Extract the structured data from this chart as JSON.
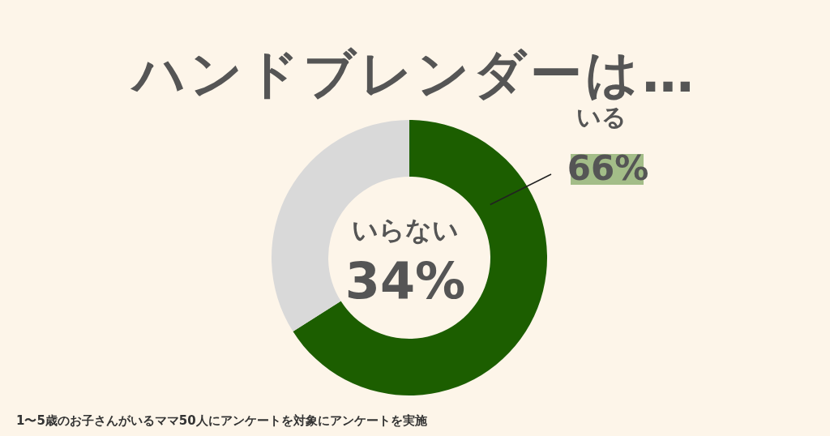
{
  "chart_data": {
    "type": "donut",
    "title": "ハンドブレンダーは…",
    "categories": [
      "いる",
      "いらない"
    ],
    "values": [
      66,
      34
    ],
    "colors": [
      "#1c5e00",
      "#d9d9d9"
    ],
    "value_labels": [
      "66%",
      "34%"
    ],
    "annotations": [
      "1〜5歳のお子さんがいるママ50人にアンケートを対象にアンケートを実施"
    ]
  }
}
